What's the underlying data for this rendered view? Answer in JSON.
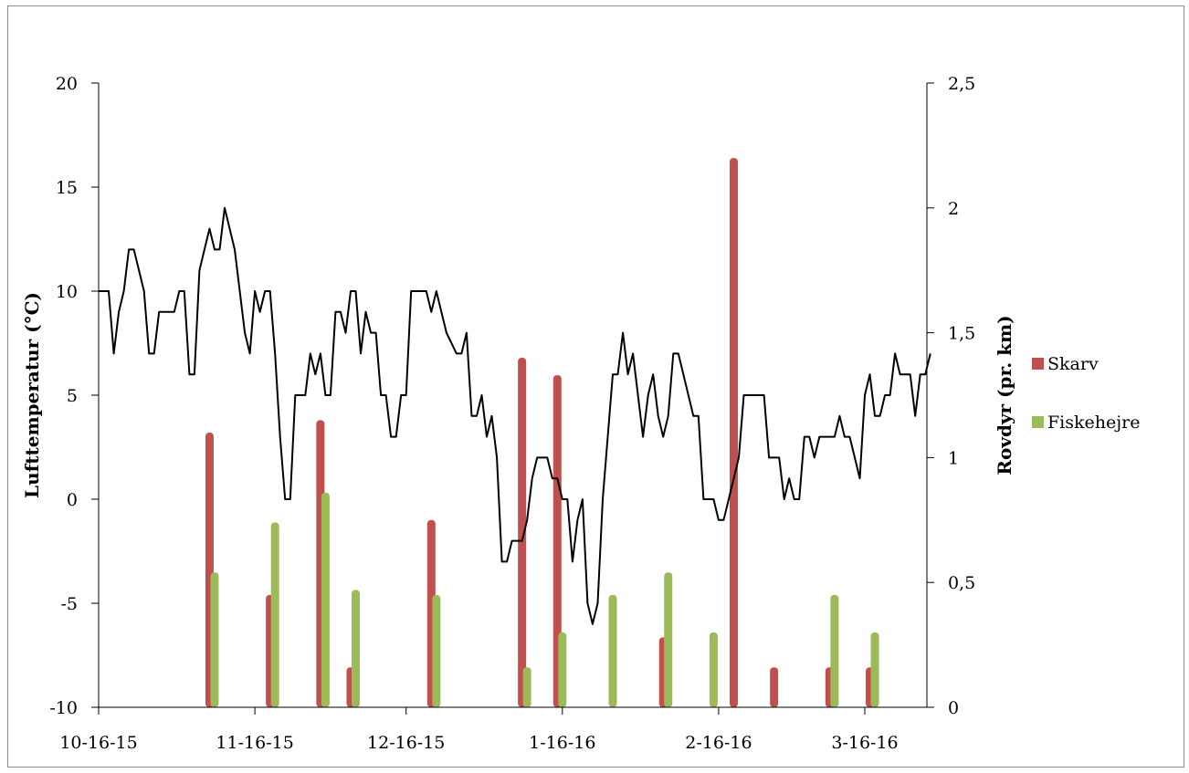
{
  "chart_data": {
    "type": "bar+line",
    "ylabel_left": "Lufttemperatur (°C)",
    "ylabel_right": "Rovdyr (pr. km)",
    "ylim_left": [
      -10,
      20
    ],
    "ylim_right": [
      0,
      2.5
    ],
    "yticks_left": [
      "-10",
      "-5",
      "0",
      "5",
      "10",
      "15",
      "20"
    ],
    "yticks_right": [
      "0",
      "0,5",
      "1",
      "1,5",
      "2",
      "2,5"
    ],
    "xticks": [
      "10-16-15",
      "11-16-15",
      "12-16-15",
      "1-16-16",
      "2-16-16",
      "3-16-16"
    ],
    "xlim": [
      "2015-10-16",
      "2016-03-26"
    ],
    "grid": false,
    "legend_position": "right",
    "colors": {
      "skarv": "#c0504d",
      "fiskehejre": "#9bbb59",
      "line": "#000000"
    },
    "series": [
      {
        "name": "Skarv",
        "type": "bar",
        "axis": "right",
        "points": [
          [
            "2015-11-07",
            1.1
          ],
          [
            "2015-11-19",
            0.45
          ],
          [
            "2015-11-29",
            1.15
          ],
          [
            "2015-12-05",
            0.16
          ],
          [
            "2015-12-21",
            0.75
          ],
          [
            "2016-01-08",
            1.4
          ],
          [
            "2016-01-15",
            1.33
          ],
          [
            "2016-02-05",
            0.28
          ],
          [
            "2016-02-19",
            2.2
          ],
          [
            "2016-02-27",
            0.16
          ],
          [
            "2016-03-09",
            0.16
          ],
          [
            "2016-03-17",
            0.16
          ]
        ]
      },
      {
        "name": "Fiskehejre",
        "type": "bar",
        "axis": "right",
        "points": [
          [
            "2015-11-08",
            0.54
          ],
          [
            "2015-11-20",
            0.74
          ],
          [
            "2015-11-30",
            0.86
          ],
          [
            "2015-12-06",
            0.47
          ],
          [
            "2015-12-22",
            0.45
          ],
          [
            "2016-01-09",
            0.16
          ],
          [
            "2016-01-16",
            0.3
          ],
          [
            "2016-01-26",
            0.45
          ],
          [
            "2016-02-06",
            0.54
          ],
          [
            "2016-02-15",
            0.3
          ],
          [
            "2016-03-10",
            0.45
          ],
          [
            "2016-03-18",
            0.3
          ]
        ]
      },
      {
        "type": "line",
        "axis": "left",
        "points": [
          [
            "2015-10-16",
            10
          ],
          [
            "2015-10-18",
            10
          ],
          [
            "2015-10-19",
            7
          ],
          [
            "2015-10-20",
            9
          ],
          [
            "2015-10-21",
            10
          ],
          [
            "2015-10-22",
            12
          ],
          [
            "2015-10-23",
            12
          ],
          [
            "2015-10-25",
            10
          ],
          [
            "2015-10-26",
            7
          ],
          [
            "2015-10-27",
            7
          ],
          [
            "2015-10-28",
            9
          ],
          [
            "2015-10-31",
            9
          ],
          [
            "2015-11-01",
            10
          ],
          [
            "2015-11-02",
            10
          ],
          [
            "2015-11-03",
            6
          ],
          [
            "2015-11-04",
            6
          ],
          [
            "2015-11-05",
            11
          ],
          [
            "2015-11-06",
            12
          ],
          [
            "2015-11-07",
            13
          ],
          [
            "2015-11-08",
            12
          ],
          [
            "2015-11-09",
            12
          ],
          [
            "2015-11-10",
            14
          ],
          [
            "2015-11-12",
            12
          ],
          [
            "2015-11-14",
            8
          ],
          [
            "2015-11-15",
            7
          ],
          [
            "2015-11-16",
            10
          ],
          [
            "2015-11-17",
            9
          ],
          [
            "2015-11-18",
            10
          ],
          [
            "2015-11-19",
            10
          ],
          [
            "2015-11-20",
            7
          ],
          [
            "2015-11-21",
            3
          ],
          [
            "2015-11-22",
            0
          ],
          [
            "2015-11-23",
            0
          ],
          [
            "2015-11-24",
            5
          ],
          [
            "2015-11-26",
            5
          ],
          [
            "2015-11-27",
            7
          ],
          [
            "2015-11-28",
            6
          ],
          [
            "2015-11-29",
            7
          ],
          [
            "2015-11-30",
            5
          ],
          [
            "2015-12-01",
            5
          ],
          [
            "2015-12-02",
            9
          ],
          [
            "2015-12-03",
            9
          ],
          [
            "2015-12-04",
            8
          ],
          [
            "2015-12-05",
            10
          ],
          [
            "2015-12-06",
            10
          ],
          [
            "2015-12-07",
            7
          ],
          [
            "2015-12-08",
            9
          ],
          [
            "2015-12-09",
            8
          ],
          [
            "2015-12-10",
            8
          ],
          [
            "2015-12-11",
            5
          ],
          [
            "2015-12-12",
            5
          ],
          [
            "2015-12-13",
            3
          ],
          [
            "2015-12-14",
            3
          ],
          [
            "2015-12-15",
            5
          ],
          [
            "2015-12-16",
            5
          ],
          [
            "2015-12-17",
            10
          ],
          [
            "2015-12-20",
            10
          ],
          [
            "2015-12-21",
            9
          ],
          [
            "2015-12-22",
            10
          ],
          [
            "2015-12-24",
            8
          ],
          [
            "2015-12-26",
            7
          ],
          [
            "2015-12-27",
            7
          ],
          [
            "2015-12-28",
            8
          ],
          [
            "2015-12-29",
            4
          ],
          [
            "2015-12-30",
            4
          ],
          [
            "2015-12-31",
            5
          ],
          [
            "2016-01-01",
            3
          ],
          [
            "2016-01-02",
            4
          ],
          [
            "2016-01-03",
            2
          ],
          [
            "2016-01-04",
            -3
          ],
          [
            "2016-01-05",
            -3
          ],
          [
            "2016-01-06",
            -2
          ],
          [
            "2016-01-08",
            -2
          ],
          [
            "2016-01-09",
            -1
          ],
          [
            "2016-01-10",
            1
          ],
          [
            "2016-01-11",
            2
          ],
          [
            "2016-01-13",
            2
          ],
          [
            "2016-01-14",
            1
          ],
          [
            "2016-01-15",
            1
          ],
          [
            "2016-01-16",
            0
          ],
          [
            "2016-01-17",
            0
          ],
          [
            "2016-01-18",
            -3
          ],
          [
            "2016-01-19",
            -1
          ],
          [
            "2016-01-20",
            0
          ],
          [
            "2016-01-21",
            -5
          ],
          [
            "2016-01-22",
            -6
          ],
          [
            "2016-01-23",
            -5
          ],
          [
            "2016-01-24",
            0
          ],
          [
            "2016-01-25",
            3
          ],
          [
            "2016-01-26",
            6
          ],
          [
            "2016-01-27",
            6
          ],
          [
            "2016-01-28",
            8
          ],
          [
            "2016-01-29",
            6
          ],
          [
            "2016-01-30",
            7
          ],
          [
            "2016-01-31",
            5
          ],
          [
            "2016-02-01",
            3
          ],
          [
            "2016-02-02",
            5
          ],
          [
            "2016-02-03",
            6
          ],
          [
            "2016-02-04",
            4
          ],
          [
            "2016-02-05",
            3
          ],
          [
            "2016-02-06",
            4
          ],
          [
            "2016-02-07",
            7
          ],
          [
            "2016-02-08",
            7
          ],
          [
            "2016-02-10",
            5
          ],
          [
            "2016-02-11",
            4
          ],
          [
            "2016-02-12",
            4
          ],
          [
            "2016-02-13",
            0
          ],
          [
            "2016-02-15",
            0
          ],
          [
            "2016-02-16",
            -1
          ],
          [
            "2016-02-17",
            -1
          ],
          [
            "2016-02-19",
            1
          ],
          [
            "2016-02-20",
            2
          ],
          [
            "2016-02-21",
            5
          ],
          [
            "2016-02-23",
            5
          ],
          [
            "2016-02-25",
            5
          ],
          [
            "2016-02-26",
            2
          ],
          [
            "2016-02-28",
            2
          ],
          [
            "2016-02-29",
            0
          ],
          [
            "2016-03-01",
            1
          ],
          [
            "2016-03-02",
            0
          ],
          [
            "2016-03-03",
            0
          ],
          [
            "2016-03-04",
            3
          ],
          [
            "2016-03-05",
            3
          ],
          [
            "2016-03-06",
            2
          ],
          [
            "2016-03-07",
            3
          ],
          [
            "2016-03-10",
            3
          ],
          [
            "2016-03-11",
            4
          ],
          [
            "2016-03-12",
            3
          ],
          [
            "2016-03-13",
            3
          ],
          [
            "2016-03-14",
            2
          ],
          [
            "2016-03-15",
            1
          ],
          [
            "2016-03-16",
            5
          ],
          [
            "2016-03-17",
            6
          ],
          [
            "2016-03-18",
            4
          ],
          [
            "2016-03-19",
            4
          ],
          [
            "2016-03-20",
            5
          ],
          [
            "2016-03-21",
            5
          ],
          [
            "2016-03-22",
            7
          ],
          [
            "2016-03-23",
            6
          ],
          [
            "2016-03-25",
            6
          ],
          [
            "2016-03-26",
            4
          ],
          [
            "2016-03-27",
            6
          ],
          [
            "2016-03-28",
            6
          ],
          [
            "2016-03-29",
            7
          ]
        ]
      }
    ]
  }
}
